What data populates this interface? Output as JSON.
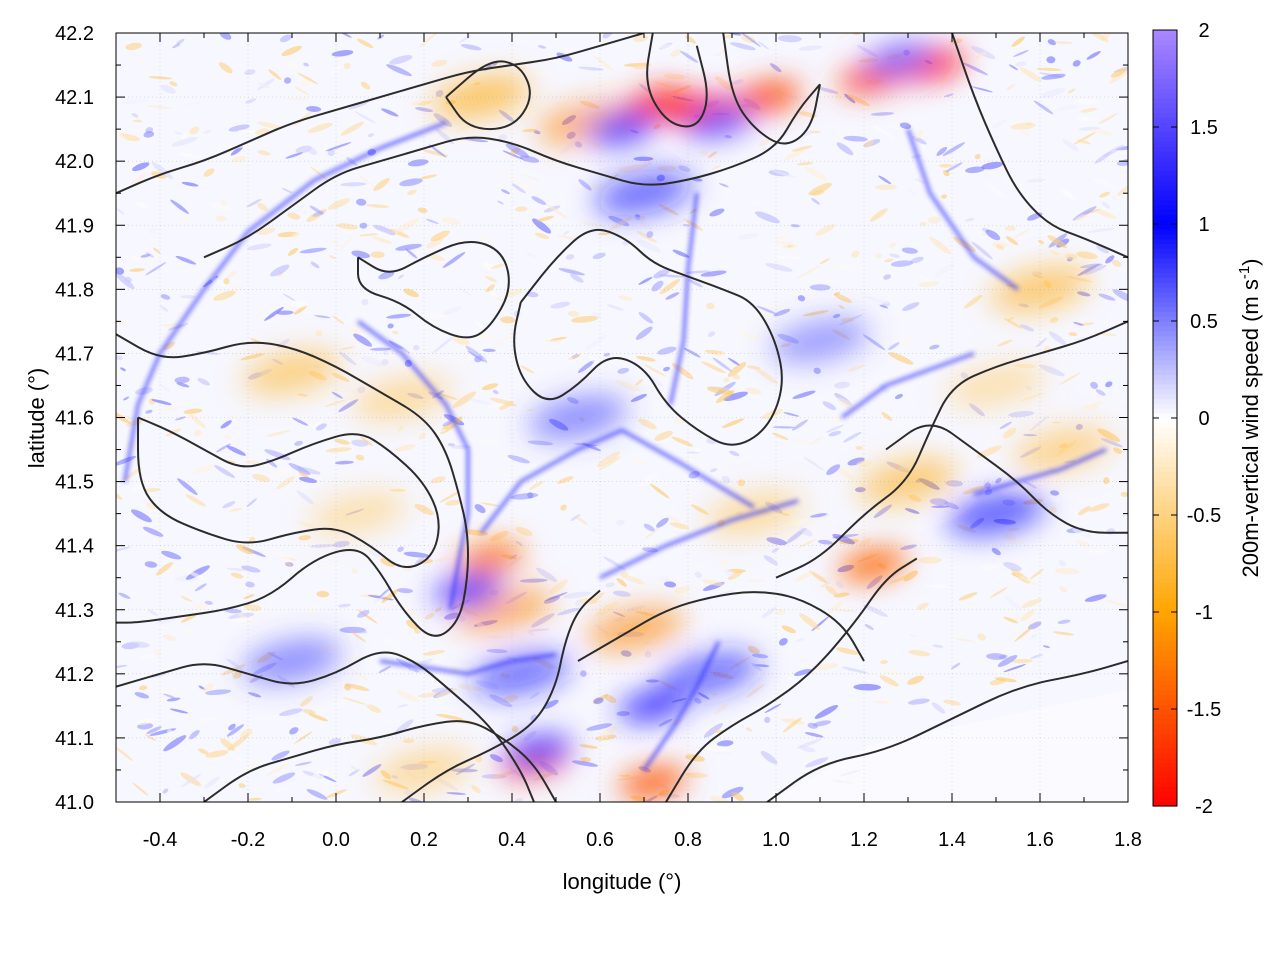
{
  "chart_data": {
    "type": "heatmap",
    "title": "",
    "xlabel": "longitude (°)",
    "ylabel": "latitude (°)",
    "xlim": [
      -0.5,
      1.8
    ],
    "ylim": [
      41.0,
      42.2
    ],
    "x_ticks": [
      -0.4,
      -0.2,
      0.0,
      0.2,
      0.4,
      0.6,
      0.8,
      1.0,
      1.2,
      1.4,
      1.6,
      1.8
    ],
    "x_tick_labels": [
      "-0.4",
      "-0.2",
      "0.0",
      "0.2",
      "0.4",
      "0.6",
      "0.8",
      "1.0",
      "1.2",
      "1.4",
      "1.6",
      "1.8"
    ],
    "y_ticks": [
      41.0,
      41.1,
      41.2,
      41.3,
      41.4,
      41.5,
      41.6,
      41.7,
      41.8,
      41.9,
      42.0,
      42.1,
      42.2
    ],
    "y_tick_labels": [
      "41.0",
      "41.1",
      "41.2",
      "41.3",
      "41.4",
      "41.5",
      "41.6",
      "41.7",
      "41.8",
      "41.9",
      "42.0",
      "42.1",
      "42.2"
    ],
    "grid": true,
    "colorbar": {
      "label": "200m-vertical wind speed",
      "unit_prefix": "(m s",
      "unit_exponent": "-1",
      "unit_suffix": ")",
      "range": [
        -2,
        2
      ],
      "ticks": [
        2,
        1.5,
        1,
        0.5,
        0,
        -0.5,
        -1,
        -1.5,
        -2
      ],
      "tick_labels": [
        "2",
        "1.5",
        "1",
        "0.5",
        "0",
        "-0.5",
        "-1",
        "-1.5",
        "-2"
      ],
      "colors": [
        {
          "value": -2,
          "color": "#ff0000"
        },
        {
          "value": -1,
          "color": "#ffa500"
        },
        {
          "value": 0,
          "color": "#ffffff"
        },
        {
          "value": 1,
          "color": "#0000ff"
        },
        {
          "value": 2,
          "color": "#aa88ff"
        }
      ]
    },
    "features": [
      {
        "lon": 0.83,
        "lat": 42.08,
        "value": -1.9
      },
      {
        "lon": 0.73,
        "lat": 42.09,
        "value": -1.8
      },
      {
        "lon": 0.98,
        "lat": 42.1,
        "value": -1.6
      },
      {
        "lon": 1.35,
        "lat": 42.15,
        "value": -1.9
      },
      {
        "lon": 1.22,
        "lat": 42.13,
        "value": -1.6
      },
      {
        "lon": 0.57,
        "lat": 42.06,
        "value": -1.2
      },
      {
        "lon": 0.33,
        "lat": 42.1,
        "value": -1.0
      },
      {
        "lon": 0.87,
        "lat": 42.06,
        "value": 1.6
      },
      {
        "lon": 0.65,
        "lat": 42.05,
        "value": 1.4
      },
      {
        "lon": 1.28,
        "lat": 42.16,
        "value": 1.7
      },
      {
        "lon": 0.7,
        "lat": 41.95,
        "value": 1.1
      },
      {
        "lon": 1.6,
        "lat": 41.8,
        "value": -0.9
      },
      {
        "lon": -0.1,
        "lat": 41.67,
        "value": -0.8
      },
      {
        "lon": 0.15,
        "lat": 41.63,
        "value": -0.6
      },
      {
        "lon": 0.35,
        "lat": 41.38,
        "value": -1.3
      },
      {
        "lon": 0.38,
        "lat": 41.3,
        "value": -1.2
      },
      {
        "lon": 0.3,
        "lat": 41.33,
        "value": 1.3
      },
      {
        "lon": 0.45,
        "lat": 41.06,
        "value": -1.4
      },
      {
        "lon": 0.46,
        "lat": 41.08,
        "value": 1.4
      },
      {
        "lon": 0.72,
        "lat": 41.03,
        "value": -1.5
      },
      {
        "lon": 0.72,
        "lat": 41.15,
        "value": 1.3
      },
      {
        "lon": 0.85,
        "lat": 41.2,
        "value": 1.2
      },
      {
        "lon": 0.68,
        "lat": 41.27,
        "value": -1.2
      },
      {
        "lon": 1.22,
        "lat": 41.37,
        "value": -1.4
      },
      {
        "lon": 1.3,
        "lat": 41.5,
        "value": -0.9
      },
      {
        "lon": 1.5,
        "lat": 41.45,
        "value": 1.0
      },
      {
        "lon": 0.42,
        "lat": 41.2,
        "value": 1.2
      },
      {
        "lon": -0.1,
        "lat": 41.22,
        "value": 0.7
      },
      {
        "lon": 1.1,
        "lat": 41.72,
        "value": 0.6
      },
      {
        "lon": 0.05,
        "lat": 41.45,
        "value": -0.5
      },
      {
        "lon": 0.55,
        "lat": 41.6,
        "value": 0.7
      },
      {
        "lon": 1.5,
        "lat": 41.65,
        "value": -0.5
      },
      {
        "lon": 1.65,
        "lat": 41.55,
        "value": -0.7
      },
      {
        "lon": 0.2,
        "lat": 41.05,
        "value": -0.6
      },
      {
        "lon": 0.95,
        "lat": 41.45,
        "value": -0.6
      }
    ],
    "ridges": [
      [
        [
          -0.48,
          41.5
        ],
        [
          -0.45,
          41.62
        ],
        [
          -0.4,
          41.7
        ],
        [
          -0.3,
          41.8
        ],
        [
          -0.2,
          41.89
        ],
        [
          -0.05,
          41.97
        ],
        [
          0.1,
          42.02
        ],
        [
          0.25,
          42.06
        ]
      ],
      [
        [
          0.05,
          41.75
        ],
        [
          0.15,
          41.7
        ],
        [
          0.25,
          41.62
        ],
        [
          0.3,
          41.55
        ],
        [
          0.3,
          41.45
        ],
        [
          0.28,
          41.38
        ],
        [
          0.26,
          41.3
        ]
      ],
      [
        [
          0.33,
          41.42
        ],
        [
          0.42,
          41.5
        ],
        [
          0.55,
          41.55
        ],
        [
          0.65,
          41.58
        ],
        [
          0.78,
          41.53
        ],
        [
          0.95,
          41.46
        ]
      ],
      [
        [
          0.6,
          41.35
        ],
        [
          0.75,
          41.4
        ],
        [
          0.9,
          41.44
        ],
        [
          1.05,
          41.47
        ]
      ],
      [
        [
          0.82,
          41.95
        ],
        [
          0.8,
          41.83
        ],
        [
          0.79,
          41.72
        ],
        [
          0.76,
          41.62
        ]
      ],
      [
        [
          0.1,
          41.22
        ],
        [
          0.2,
          41.21
        ],
        [
          0.3,
          41.2
        ],
        [
          0.4,
          41.22
        ],
        [
          0.5,
          41.23
        ]
      ],
      [
        [
          0.7,
          41.05
        ],
        [
          0.77,
          41.12
        ],
        [
          0.82,
          41.18
        ],
        [
          0.87,
          41.25
        ]
      ],
      [
        [
          1.15,
          41.6
        ],
        [
          1.25,
          41.65
        ],
        [
          1.33,
          41.67
        ],
        [
          1.45,
          41.7
        ]
      ],
      [
        [
          1.45,
          41.48
        ],
        [
          1.55,
          41.5
        ],
        [
          1.65,
          41.52
        ],
        [
          1.75,
          41.55
        ]
      ],
      [
        [
          1.3,
          42.05
        ],
        [
          1.35,
          41.95
        ],
        [
          1.45,
          41.85
        ],
        [
          1.55,
          41.8
        ]
      ]
    ],
    "contours": [
      [
        [
          -0.5,
          41.73
        ],
        [
          -0.4,
          41.69
        ],
        [
          -0.3,
          41.7
        ],
        [
          -0.2,
          41.72
        ],
        [
          -0.1,
          41.71
        ],
        [
          0.0,
          41.68
        ],
        [
          0.1,
          41.64
        ],
        [
          0.2,
          41.6
        ],
        [
          0.25,
          41.55
        ],
        [
          0.28,
          41.48
        ],
        [
          0.3,
          41.42
        ],
        [
          0.3,
          41.35
        ],
        [
          0.28,
          41.28
        ],
        [
          0.22,
          41.25
        ],
        [
          0.15,
          41.3
        ],
        [
          0.1,
          41.36
        ],
        [
          0.05,
          41.4
        ],
        [
          -0.05,
          41.38
        ],
        [
          -0.15,
          41.32
        ],
        [
          -0.25,
          41.3
        ],
        [
          -0.35,
          41.29
        ],
        [
          -0.45,
          41.28
        ],
        [
          -0.5,
          41.28
        ]
      ],
      [
        [
          -0.45,
          41.6
        ],
        [
          -0.38,
          41.58
        ],
        [
          -0.3,
          41.55
        ],
        [
          -0.22,
          41.52
        ],
        [
          -0.15,
          41.53
        ],
        [
          -0.05,
          41.56
        ],
        [
          0.05,
          41.58
        ],
        [
          0.12,
          41.55
        ],
        [
          0.2,
          41.5
        ],
        [
          0.24,
          41.44
        ],
        [
          0.22,
          41.38
        ],
        [
          0.15,
          41.36
        ],
        [
          0.08,
          41.4
        ],
        [
          0.0,
          41.43
        ],
        [
          -0.1,
          41.42
        ],
        [
          -0.2,
          41.4
        ],
        [
          -0.3,
          41.42
        ],
        [
          -0.4,
          41.45
        ],
        [
          -0.45,
          41.5
        ],
        [
          -0.45,
          41.6
        ]
      ],
      [
        [
          -0.5,
          41.18
        ],
        [
          -0.4,
          41.2
        ],
        [
          -0.3,
          41.22
        ],
        [
          -0.2,
          41.2
        ],
        [
          -0.1,
          41.18
        ],
        [
          0.0,
          41.2
        ],
        [
          0.1,
          41.24
        ],
        [
          0.18,
          41.22
        ],
        [
          0.25,
          41.18
        ],
        [
          0.35,
          41.12
        ],
        [
          0.42,
          41.05
        ],
        [
          0.45,
          41.0
        ]
      ],
      [
        [
          -0.3,
          41.0
        ],
        [
          -0.2,
          41.05
        ],
        [
          -0.1,
          41.07
        ],
        [
          0.0,
          41.09
        ],
        [
          0.1,
          41.1
        ],
        [
          0.2,
          41.12
        ],
        [
          0.3,
          41.13
        ],
        [
          0.38,
          41.1
        ],
        [
          0.45,
          41.06
        ],
        [
          0.5,
          41.0
        ]
      ],
      [
        [
          0.15,
          41.0
        ],
        [
          0.25,
          41.05
        ],
        [
          0.35,
          41.08
        ],
        [
          0.45,
          41.12
        ],
        [
          0.5,
          41.18
        ],
        [
          0.52,
          41.25
        ],
        [
          0.55,
          41.3
        ],
        [
          0.6,
          41.33
        ]
      ],
      [
        [
          -0.5,
          41.95
        ],
        [
          -0.4,
          41.98
        ],
        [
          -0.3,
          42.0
        ],
        [
          -0.2,
          42.03
        ],
        [
          -0.1,
          42.06
        ],
        [
          0.0,
          42.08
        ],
        [
          0.1,
          42.1
        ],
        [
          0.2,
          42.12
        ],
        [
          0.3,
          42.14
        ],
        [
          0.4,
          42.15
        ],
        [
          0.5,
          42.16
        ],
        [
          0.6,
          42.18
        ],
        [
          0.7,
          42.2
        ]
      ],
      [
        [
          -0.3,
          41.85
        ],
        [
          -0.2,
          41.88
        ],
        [
          -0.1,
          41.93
        ],
        [
          0.0,
          41.98
        ],
        [
          0.1,
          42.0
        ],
        [
          0.2,
          42.02
        ],
        [
          0.3,
          42.04
        ],
        [
          0.4,
          42.03
        ],
        [
          0.5,
          42.0
        ],
        [
          0.6,
          41.98
        ],
        [
          0.7,
          41.96
        ],
        [
          0.8,
          41.97
        ],
        [
          0.9,
          41.99
        ],
        [
          1.0,
          42.02
        ],
        [
          1.05,
          42.08
        ],
        [
          1.1,
          42.12
        ]
      ],
      [
        [
          0.05,
          41.85
        ],
        [
          0.12,
          41.82
        ],
        [
          0.2,
          41.85
        ],
        [
          0.3,
          41.88
        ],
        [
          0.38,
          41.86
        ],
        [
          0.4,
          41.8
        ],
        [
          0.35,
          41.74
        ],
        [
          0.3,
          41.72
        ],
        [
          0.22,
          41.74
        ],
        [
          0.15,
          41.78
        ],
        [
          0.05,
          41.8
        ],
        [
          0.05,
          41.85
        ]
      ],
      [
        [
          0.42,
          41.78
        ],
        [
          0.5,
          41.85
        ],
        [
          0.58,
          41.9
        ],
        [
          0.66,
          41.88
        ],
        [
          0.72,
          41.84
        ],
        [
          0.8,
          41.82
        ],
        [
          0.88,
          41.8
        ],
        [
          0.95,
          41.78
        ],
        [
          1.0,
          41.72
        ],
        [
          1.02,
          41.65
        ],
        [
          0.98,
          41.58
        ],
        [
          0.9,
          41.55
        ],
        [
          0.82,
          41.58
        ],
        [
          0.75,
          41.62
        ],
        [
          0.7,
          41.68
        ],
        [
          0.62,
          41.7
        ],
        [
          0.55,
          41.65
        ],
        [
          0.48,
          41.62
        ],
        [
          0.42,
          41.66
        ],
        [
          0.4,
          41.72
        ],
        [
          0.42,
          41.78
        ]
      ],
      [
        [
          1.0,
          41.35
        ],
        [
          1.1,
          41.38
        ],
        [
          1.2,
          41.45
        ],
        [
          1.3,
          41.5
        ],
        [
          1.35,
          41.58
        ],
        [
          1.4,
          41.65
        ],
        [
          1.5,
          41.68
        ],
        [
          1.6,
          41.7
        ],
        [
          1.7,
          41.72
        ],
        [
          1.8,
          41.75
        ]
      ],
      [
        [
          0.55,
          41.22
        ],
        [
          0.65,
          41.26
        ],
        [
          0.75,
          41.3
        ],
        [
          0.85,
          41.32
        ],
        [
          0.95,
          41.33
        ],
        [
          1.05,
          41.32
        ],
        [
          1.15,
          41.28
        ],
        [
          1.2,
          41.22
        ]
      ],
      [
        [
          0.75,
          41.0
        ],
        [
          0.82,
          41.08
        ],
        [
          0.9,
          41.12
        ],
        [
          0.98,
          41.15
        ],
        [
          1.08,
          41.2
        ],
        [
          1.18,
          41.28
        ],
        [
          1.25,
          41.35
        ],
        [
          1.32,
          41.38
        ]
      ],
      [
        [
          0.98,
          41.0
        ],
        [
          1.1,
          41.06
        ],
        [
          1.25,
          41.08
        ],
        [
          1.4,
          41.13
        ],
        [
          1.55,
          41.18
        ],
        [
          1.7,
          41.2
        ],
        [
          1.8,
          41.22
        ]
      ],
      [
        [
          1.25,
          41.55
        ],
        [
          1.35,
          41.6
        ],
        [
          1.45,
          41.55
        ],
        [
          1.55,
          41.5
        ],
        [
          1.62,
          41.45
        ],
        [
          1.7,
          41.42
        ],
        [
          1.8,
          41.42
        ]
      ],
      [
        [
          1.4,
          42.2
        ],
        [
          1.45,
          42.1
        ],
        [
          1.5,
          42.02
        ],
        [
          1.55,
          41.95
        ],
        [
          1.62,
          41.9
        ],
        [
          1.7,
          41.88
        ],
        [
          1.8,
          41.85
        ]
      ],
      [
        [
          0.88,
          42.2
        ],
        [
          0.9,
          42.1
        ],
        [
          0.95,
          42.05
        ],
        [
          1.02,
          42.02
        ],
        [
          1.08,
          42.05
        ],
        [
          1.1,
          42.12
        ]
      ],
      [
        [
          0.72,
          42.2
        ],
        [
          0.7,
          42.12
        ],
        [
          0.75,
          42.06
        ],
        [
          0.82,
          42.05
        ],
        [
          0.85,
          42.1
        ],
        [
          0.82,
          42.18
        ]
      ],
      [
        [
          0.25,
          42.1
        ],
        [
          0.3,
          42.05
        ],
        [
          0.4,
          42.05
        ],
        [
          0.45,
          42.1
        ],
        [
          0.42,
          42.15
        ],
        [
          0.35,
          42.16
        ],
        [
          0.25,
          42.1
        ]
      ]
    ]
  }
}
